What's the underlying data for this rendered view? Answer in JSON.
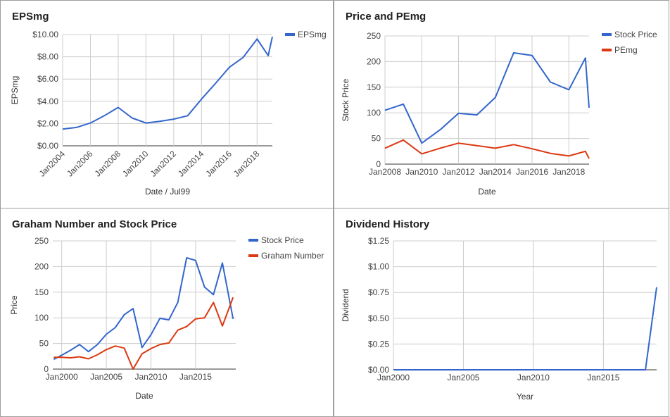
{
  "colors": {
    "blue": "#3366cc",
    "red": "#dc3912",
    "grid": "#cccccc"
  },
  "chart_data": [
    {
      "type": "line",
      "title": "EPSmg",
      "xlabel": "Date / Jul99",
      "ylabel": "EPSmg",
      "ylim": [
        0,
        10
      ],
      "xlim": [
        2004,
        2019.1
      ],
      "yticks": [
        "$0.00",
        "$2.00",
        "$4.00",
        "$6.00",
        "$8.00",
        "$10.00"
      ],
      "yticks_values": [
        0,
        2,
        4,
        6,
        8,
        10
      ],
      "xticks": [
        "Jan2004",
        "Jan2006",
        "Jan2008",
        "Jan2010",
        "Jan2012",
        "Jan2014",
        "Jan2016",
        "Jan2018"
      ],
      "xticks_values": [
        2004,
        2006,
        2008,
        2010,
        2012,
        2014,
        2016,
        2018
      ],
      "legend": "top-right",
      "series": [
        {
          "name": "EPSmg",
          "color": "#3366cc",
          "x": [
            2004,
            2005,
            2006,
            2007,
            2008,
            2009,
            2010,
            2011,
            2012,
            2013,
            2014,
            2015,
            2016,
            2017,
            2018,
            2018.8,
            2019.1
          ],
          "y": [
            1.5,
            1.65,
            2.05,
            2.7,
            3.45,
            2.5,
            2.05,
            2.2,
            2.4,
            2.7,
            4.2,
            5.6,
            7.05,
            7.95,
            9.6,
            8.1,
            9.8
          ]
        }
      ]
    },
    {
      "type": "line",
      "title": "Price and PEmg",
      "xlabel": "Date",
      "ylabel": "Stock Price",
      "ylim": [
        0,
        250
      ],
      "xlim": [
        2008,
        2019.1
      ],
      "yticks": [
        "0",
        "50",
        "100",
        "150",
        "200",
        "250"
      ],
      "yticks_values": [
        0,
        50,
        100,
        150,
        200,
        250
      ],
      "xticks": [
        "Jan2008",
        "Jan2010",
        "Jan2012",
        "Jan2014",
        "Jan2016",
        "Jan2018"
      ],
      "xticks_values": [
        2008,
        2010,
        2012,
        2014,
        2016,
        2018
      ],
      "legend": "top-right",
      "series": [
        {
          "name": "Stock Price",
          "color": "#3366cc",
          "x": [
            2008,
            2009,
            2010,
            2011,
            2012,
            2013,
            2014,
            2015,
            2016,
            2017,
            2018,
            2018.9,
            2019.1
          ],
          "y": [
            105,
            117,
            41,
            67,
            99,
            96,
            130,
            217,
            212,
            160,
            145,
            207,
            110
          ]
        },
        {
          "name": "PEmg",
          "color": "#dc3912",
          "x": [
            2008,
            2009,
            2010,
            2011,
            2012,
            2013,
            2014,
            2015,
            2016,
            2017,
            2018,
            2018.9,
            2019.1
          ],
          "y": [
            31,
            47,
            20,
            31,
            41,
            36,
            31,
            38,
            30,
            21,
            16,
            25,
            11
          ]
        }
      ]
    },
    {
      "type": "line",
      "title": "Graham Number and Stock Price",
      "xlabel": "Date",
      "ylabel": "Price",
      "ylim": [
        0,
        250
      ],
      "xlim": [
        1999,
        2019.5
      ],
      "yticks": [
        "0",
        "50",
        "100",
        "150",
        "200",
        "250"
      ],
      "yticks_values": [
        0,
        50,
        100,
        150,
        200,
        250
      ],
      "xticks": [
        "Jan2000",
        "Jan2005",
        "Jan2010",
        "Jan2015"
      ],
      "xticks_values": [
        2000,
        2005,
        2010,
        2015
      ],
      "legend": "top-right",
      "series": [
        {
          "name": "Stock Price",
          "color": "#3366cc",
          "x": [
            1999.1,
            2000,
            2001,
            2002,
            2003,
            2004,
            2005,
            2006,
            2007,
            2008,
            2009,
            2010,
            2011,
            2012,
            2013,
            2014,
            2015,
            2016,
            2017,
            2018,
            2019.2
          ],
          "y": [
            19,
            27,
            37,
            48,
            34,
            48,
            68,
            81,
            106,
            118,
            42,
            67,
            99,
            96,
            130,
            217,
            212,
            160,
            145,
            207,
            98
          ]
        },
        {
          "name": "Graham Number",
          "color": "#dc3912",
          "x": [
            1999.1,
            2000,
            2001,
            2002,
            2003,
            2004,
            2005,
            2006,
            2007,
            2008,
            2009,
            2010,
            2011,
            2012,
            2013,
            2014,
            2015,
            2016,
            2017,
            2018,
            2019.2
          ],
          "y": [
            23,
            23,
            22,
            24,
            20,
            28,
            38,
            45,
            41,
            0,
            30,
            40,
            48,
            51,
            76,
            83,
            98,
            100,
            130,
            84,
            140
          ]
        }
      ]
    },
    {
      "type": "line",
      "title": "Dividend History",
      "xlabel": "Year",
      "ylabel": "Dividend",
      "ylim": [
        0,
        1.25
      ],
      "xlim": [
        2000,
        2018.8
      ],
      "yticks": [
        "$0.00",
        "$0.25",
        "$0.50",
        "$0.75",
        "$1.00",
        "$1.25"
      ],
      "yticks_values": [
        0,
        0.25,
        0.5,
        0.75,
        1.0,
        1.25
      ],
      "xticks": [
        "Jan2000",
        "Jan2005",
        "Jan2010",
        "Jan2015"
      ],
      "xticks_values": [
        2000,
        2005,
        2010,
        2015
      ],
      "legend": "none",
      "series": [
        {
          "color": "#3366cc",
          "x": [
            2000,
            2018.0,
            2018.8
          ],
          "y": [
            0,
            0,
            0.8
          ]
        }
      ]
    }
  ]
}
